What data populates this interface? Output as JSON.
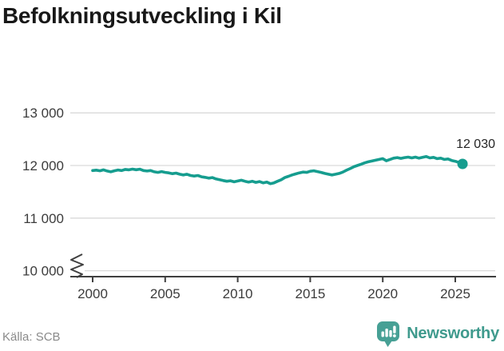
{
  "title": "Befolkningsutveckling i Kil",
  "source": "Källa: SCB",
  "logo_text": "Newsworthy",
  "colors": {
    "line": "#169d8f",
    "grid": "#d9d9d9",
    "axis": "#3f3f3f",
    "tick_label": "#3c3c3c",
    "annotation": "#242424",
    "source_text": "#8a8a8a",
    "logo": "#47a095",
    "logo_text": "#3f9a8d"
  },
  "chart_data": {
    "type": "line",
    "title": "Befolkningsutveckling i Kil",
    "xlabel": "",
    "ylabel": "",
    "xlim": [
      1998.5,
      2027.8
    ],
    "ylim_shown": [
      10000,
      13000
    ],
    "axis_break": true,
    "grid": true,
    "legend": "none",
    "end_label": "12 030",
    "end_value": 12030,
    "yticks": [
      {
        "value": 13000,
        "label": "13 000"
      },
      {
        "value": 12000,
        "label": "12 000"
      },
      {
        "value": 11000,
        "label": "11 000"
      },
      {
        "value": 10000,
        "label": "10 000"
      }
    ],
    "xticks": [
      {
        "value": 2000,
        "label": "2000"
      },
      {
        "value": 2005,
        "label": "2005"
      },
      {
        "value": 2010,
        "label": "2010"
      },
      {
        "value": 2015,
        "label": "2015"
      },
      {
        "value": 2020,
        "label": "2020"
      },
      {
        "value": 2025,
        "label": "2025"
      }
    ],
    "x": [
      2000.0,
      2000.25,
      2000.5,
      2000.75,
      2001.0,
      2001.25,
      2001.5,
      2001.75,
      2002.0,
      2002.25,
      2002.5,
      2002.75,
      2003.0,
      2003.25,
      2003.5,
      2003.75,
      2004.0,
      2004.25,
      2004.5,
      2004.75,
      2005.0,
      2005.25,
      2005.5,
      2005.75,
      2006.0,
      2006.25,
      2006.5,
      2006.75,
      2007.0,
      2007.25,
      2007.5,
      2007.75,
      2008.0,
      2008.25,
      2008.5,
      2008.75,
      2009.0,
      2009.25,
      2009.5,
      2009.75,
      2010.0,
      2010.25,
      2010.5,
      2010.75,
      2011.0,
      2011.25,
      2011.5,
      2011.75,
      2012.0,
      2012.25,
      2012.5,
      2012.75,
      2013.0,
      2013.25,
      2013.5,
      2013.75,
      2014.0,
      2014.25,
      2014.5,
      2014.75,
      2015.0,
      2015.25,
      2015.5,
      2015.75,
      2016.0,
      2016.25,
      2016.5,
      2016.75,
      2017.0,
      2017.25,
      2017.5,
      2017.75,
      2018.0,
      2018.25,
      2018.5,
      2018.75,
      2019.0,
      2019.25,
      2019.5,
      2019.75,
      2020.0,
      2020.25,
      2020.5,
      2020.75,
      2021.0,
      2021.25,
      2021.5,
      2021.75,
      2022.0,
      2022.25,
      2022.5,
      2022.75,
      2023.0,
      2023.25,
      2023.5,
      2023.75,
      2024.0,
      2024.25,
      2024.5,
      2024.75,
      2025.0,
      2025.25,
      2025.5
    ],
    "values": [
      11905,
      11912,
      11900,
      11918,
      11895,
      11880,
      11900,
      11915,
      11905,
      11925,
      11918,
      11932,
      11920,
      11930,
      11905,
      11895,
      11905,
      11880,
      11870,
      11885,
      11870,
      11860,
      11845,
      11855,
      11835,
      11820,
      11835,
      11810,
      11800,
      11810,
      11785,
      11775,
      11760,
      11770,
      11745,
      11730,
      11715,
      11700,
      11710,
      11690,
      11705,
      11720,
      11700,
      11685,
      11700,
      11680,
      11695,
      11670,
      11685,
      11655,
      11670,
      11700,
      11730,
      11770,
      11795,
      11820,
      11840,
      11860,
      11875,
      11870,
      11890,
      11900,
      11885,
      11870,
      11850,
      11835,
      11820,
      11835,
      11850,
      11875,
      11910,
      11940,
      11975,
      12000,
      12025,
      12050,
      12070,
      12085,
      12100,
      12115,
      12130,
      12090,
      12115,
      12140,
      12150,
      12135,
      12150,
      12160,
      12145,
      12160,
      12140,
      12155,
      12170,
      12145,
      12155,
      12130,
      12140,
      12115,
      12125,
      12095,
      12080,
      12060,
      12030
    ]
  }
}
